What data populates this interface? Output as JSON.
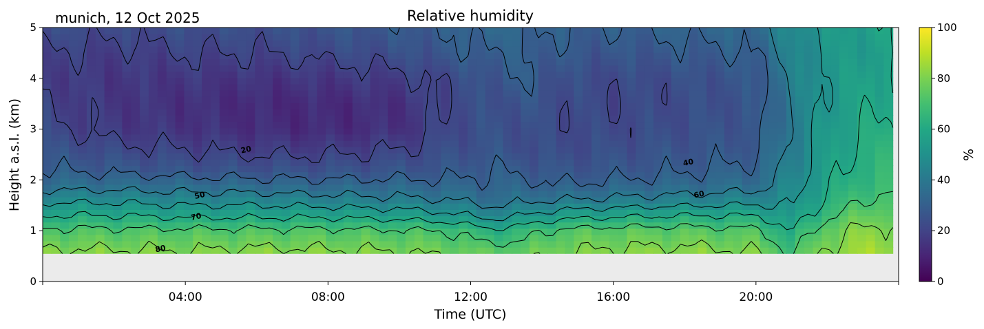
{
  "chart_data": {
    "type": "heatmap",
    "title": "Relative humidity",
    "subtitle": "munich, 12 Oct 2025",
    "xlabel": "Time (UTC)",
    "ylabel": "Height a.s.l. (km)",
    "xlim_hours": [
      0,
      24
    ],
    "ylim_km": [
      0,
      5
    ],
    "x_ticks": [
      {
        "value": 4,
        "label": "04:00"
      },
      {
        "value": 8,
        "label": "08:00"
      },
      {
        "value": 12,
        "label": "12:00"
      },
      {
        "value": 16,
        "label": "16:00"
      },
      {
        "value": 20,
        "label": "20:00"
      }
    ],
    "y_ticks": [
      {
        "value": 0,
        "label": "0"
      },
      {
        "value": 1,
        "label": "1"
      },
      {
        "value": 2,
        "label": "2"
      },
      {
        "value": 3,
        "label": "3"
      },
      {
        "value": 4,
        "label": "4"
      },
      {
        "value": 5,
        "label": "5"
      }
    ],
    "data_bottom_km": 0.55,
    "colorbar": {
      "label": "%",
      "range": [
        0,
        100
      ],
      "ticks": [
        {
          "value": 0,
          "label": "0"
        },
        {
          "value": 20,
          "label": "20"
        },
        {
          "value": 40,
          "label": "40"
        },
        {
          "value": 60,
          "label": "60"
        },
        {
          "value": 80,
          "label": "80"
        },
        {
          "value": 100,
          "label": "100"
        }
      ]
    },
    "profile_heights_km": [
      0.55,
      1.0,
      1.3,
      1.6,
      1.9,
      2.2,
      2.6,
      3.0,
      3.5,
      4.0,
      4.5,
      5.0
    ],
    "profile_times_h": [
      0,
      2,
      4,
      6,
      8,
      10,
      11.5,
      12.5,
      13.5,
      14.5,
      16,
      18,
      20,
      21,
      22,
      23,
      24
    ],
    "rh_percent": [
      [
        82,
        82,
        81,
        83,
        82,
        81,
        78,
        76,
        76,
        80,
        82,
        83,
        81,
        70,
        82,
        86,
        86
      ],
      [
        72,
        72,
        72,
        72,
        72,
        71,
        70,
        62,
        66,
        72,
        74,
        74,
        72,
        60,
        76,
        82,
        82
      ],
      [
        60,
        60,
        58,
        58,
        58,
        56,
        52,
        46,
        50,
        56,
        58,
        60,
        60,
        52,
        68,
        76,
        76
      ],
      [
        48,
        48,
        46,
        46,
        44,
        42,
        40,
        36,
        38,
        40,
        42,
        44,
        46,
        48,
        62,
        70,
        72
      ],
      [
        36,
        36,
        35,
        34,
        33,
        33,
        32,
        32,
        32,
        30,
        32,
        34,
        36,
        46,
        58,
        66,
        68
      ],
      [
        30,
        28,
        26,
        25,
        25,
        26,
        27,
        30,
        28,
        26,
        27,
        29,
        32,
        44,
        56,
        64,
        66
      ],
      [
        26,
        22,
        20,
        18,
        18,
        20,
        24,
        26,
        24,
        23,
        24,
        26,
        28,
        42,
        54,
        62,
        64
      ],
      [
        22,
        17,
        15,
        13,
        12,
        14,
        22,
        25,
        24,
        22,
        22,
        24,
        27,
        40,
        54,
        60,
        62
      ],
      [
        20,
        16,
        14,
        12,
        12,
        14,
        22,
        24,
        26,
        23,
        21,
        23,
        26,
        40,
        52,
        58,
        60
      ],
      [
        18,
        16,
        16,
        15,
        16,
        18,
        22,
        26,
        30,
        24,
        22,
        24,
        27,
        42,
        52,
        56,
        60
      ],
      [
        20,
        18,
        20,
        20,
        22,
        24,
        28,
        30,
        30,
        28,
        26,
        28,
        30,
        44,
        52,
        54,
        58
      ],
      [
        24,
        22,
        24,
        24,
        26,
        28,
        30,
        34,
        32,
        30,
        30,
        32,
        34,
        48,
        52,
        56,
        60
      ]
    ],
    "contour_levels": [
      20,
      30,
      40,
      50,
      60,
      70,
      80
    ],
    "contour_labels": [
      {
        "value": "20",
        "t": 5.7,
        "h": 2.6
      },
      {
        "value": "40",
        "t": 18.1,
        "h": 2.35
      },
      {
        "value": "50",
        "t": 4.4,
        "h": 1.7
      },
      {
        "value": "60",
        "t": 18.4,
        "h": 1.72
      },
      {
        "value": "70",
        "t": 4.3,
        "h": 1.28
      },
      {
        "value": "80",
        "t": 3.3,
        "h": 0.65
      }
    ]
  }
}
